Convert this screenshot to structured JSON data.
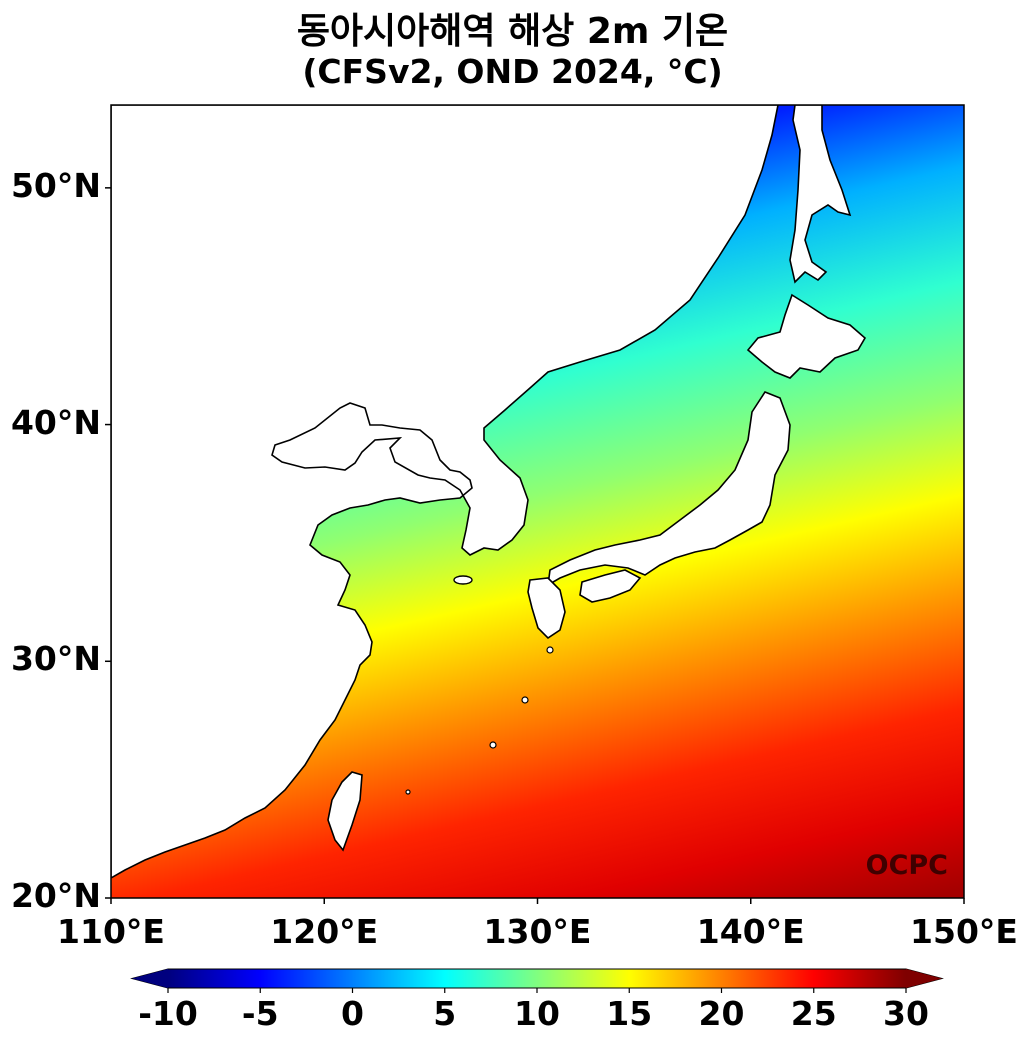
{
  "title": {
    "line1": "동아시아해역 해상 2m 기온",
    "line2": "(CFSv2, OND 2024, °C)"
  },
  "map": {
    "extent": {
      "lon": [
        110,
        150
      ],
      "lat": [
        20,
        53.5
      ]
    },
    "lat_ticks": [
      {
        "value": 50,
        "label": "50°N"
      },
      {
        "value": 40,
        "label": "40°N"
      },
      {
        "value": 30,
        "label": "30°N"
      },
      {
        "value": 20,
        "label": "20°N"
      }
    ],
    "lon_ticks": [
      {
        "value": 110,
        "label": "110°E"
      },
      {
        "value": 120,
        "label": "120°E"
      },
      {
        "value": 130,
        "label": "130°E"
      },
      {
        "value": 140,
        "label": "140°E"
      },
      {
        "value": 150,
        "label": "150°E"
      }
    ],
    "watermark": "OCPC"
  },
  "colorbar": {
    "range": [
      -10,
      30
    ],
    "colors": [
      "#00007f",
      "#0000ff",
      "#0080ff",
      "#00ffff",
      "#80ff80",
      "#ffff00",
      "#ff8000",
      "#ff0000",
      "#7f0000"
    ],
    "ticks": [
      {
        "value": -10,
        "label": "-10"
      },
      {
        "value": -5,
        "label": "-5"
      },
      {
        "value": 0,
        "label": "0"
      },
      {
        "value": 5,
        "label": "5"
      },
      {
        "value": 10,
        "label": "10"
      },
      {
        "value": 15,
        "label": "15"
      },
      {
        "value": 20,
        "label": "20"
      },
      {
        "value": 25,
        "label": "25"
      },
      {
        "value": 30,
        "label": "30"
      }
    ],
    "extend": "both"
  }
}
